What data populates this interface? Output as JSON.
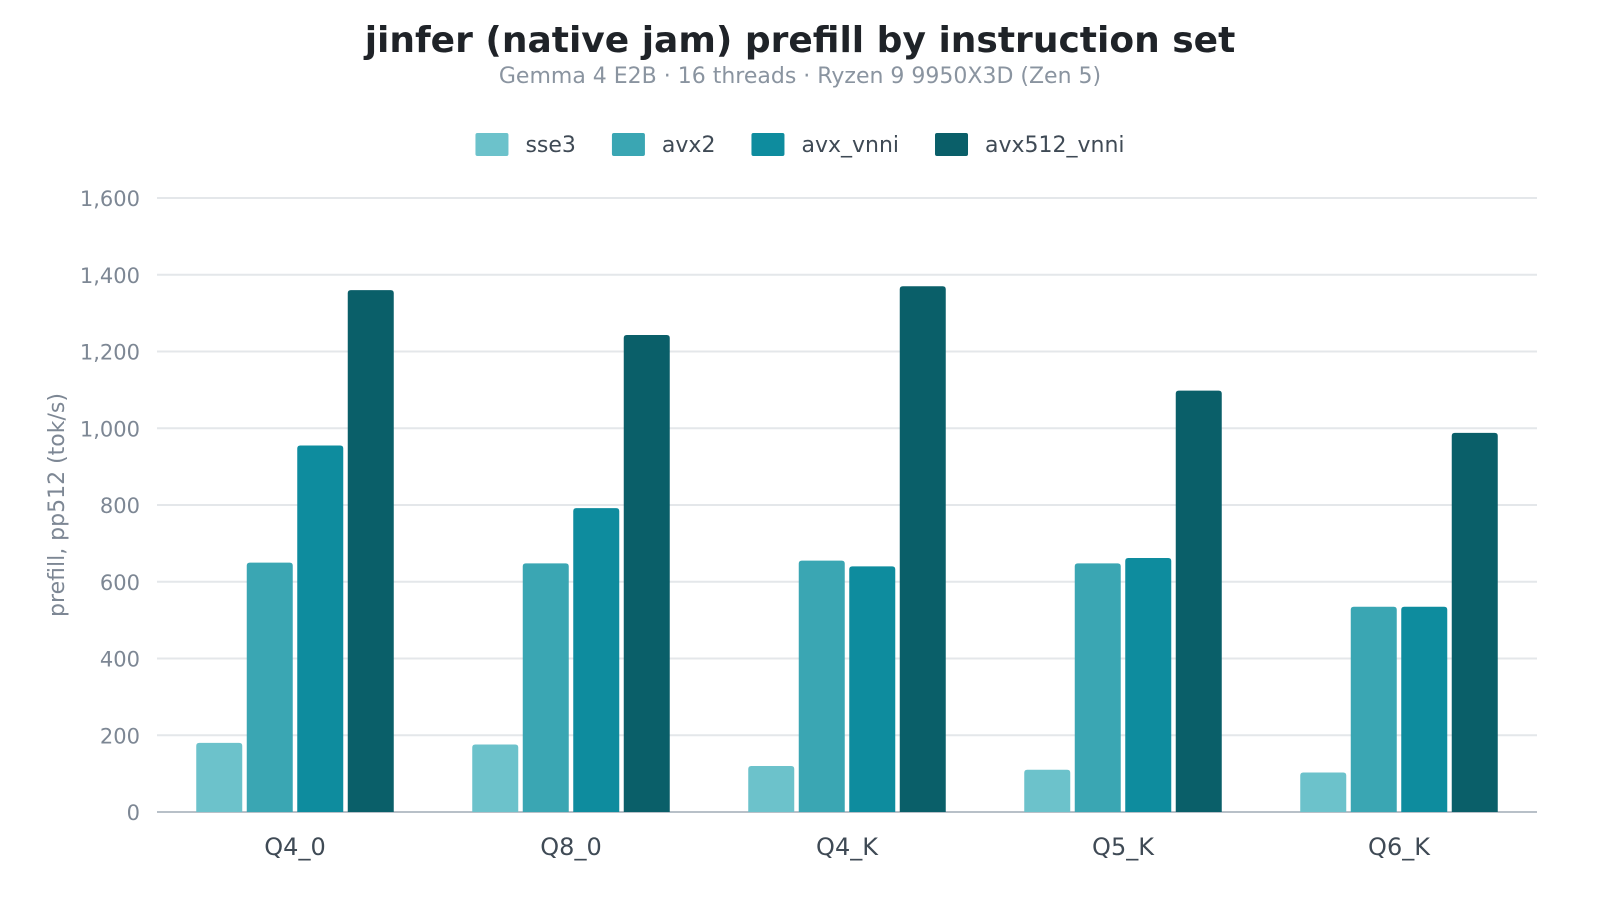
{
  "chart_data": {
    "type": "bar",
    "title": "jinfer (native jam) prefill by instruction set",
    "subtitle": "Gemma 4 E2B  ·  16 threads  ·  Ryzen 9 9950X3D (Zen 5)",
    "xlabel": "",
    "ylabel": "prefill, pp512 (tok/s)",
    "ylim": [
      0,
      1600
    ],
    "yticks": [
      0,
      200,
      400,
      600,
      800,
      1000,
      1200,
      1400,
      1600
    ],
    "ytick_labels": [
      "0",
      "200",
      "400",
      "600",
      "800",
      "1,000",
      "1,200",
      "1,400",
      "1,600"
    ],
    "grid": true,
    "legend_position": "top-center",
    "categories": [
      "Q4_0",
      "Q8_0",
      "Q4_K",
      "Q5_K",
      "Q6_K"
    ],
    "series": [
      {
        "name": "sse3",
        "color": "#6cc2cb",
        "values": [
          180,
          176,
          120,
          110,
          103
        ]
      },
      {
        "name": "avx2",
        "color": "#3aa6b3",
        "values": [
          650,
          648,
          655,
          648,
          535
        ]
      },
      {
        "name": "avx_vnni",
        "color": "#0e8c9e",
        "values": [
          955,
          792,
          640,
          662,
          535
        ]
      },
      {
        "name": "avx512_vnni",
        "color": "#0a5f69",
        "values": [
          1360,
          1243,
          1370,
          1098,
          988
        ]
      }
    ]
  }
}
